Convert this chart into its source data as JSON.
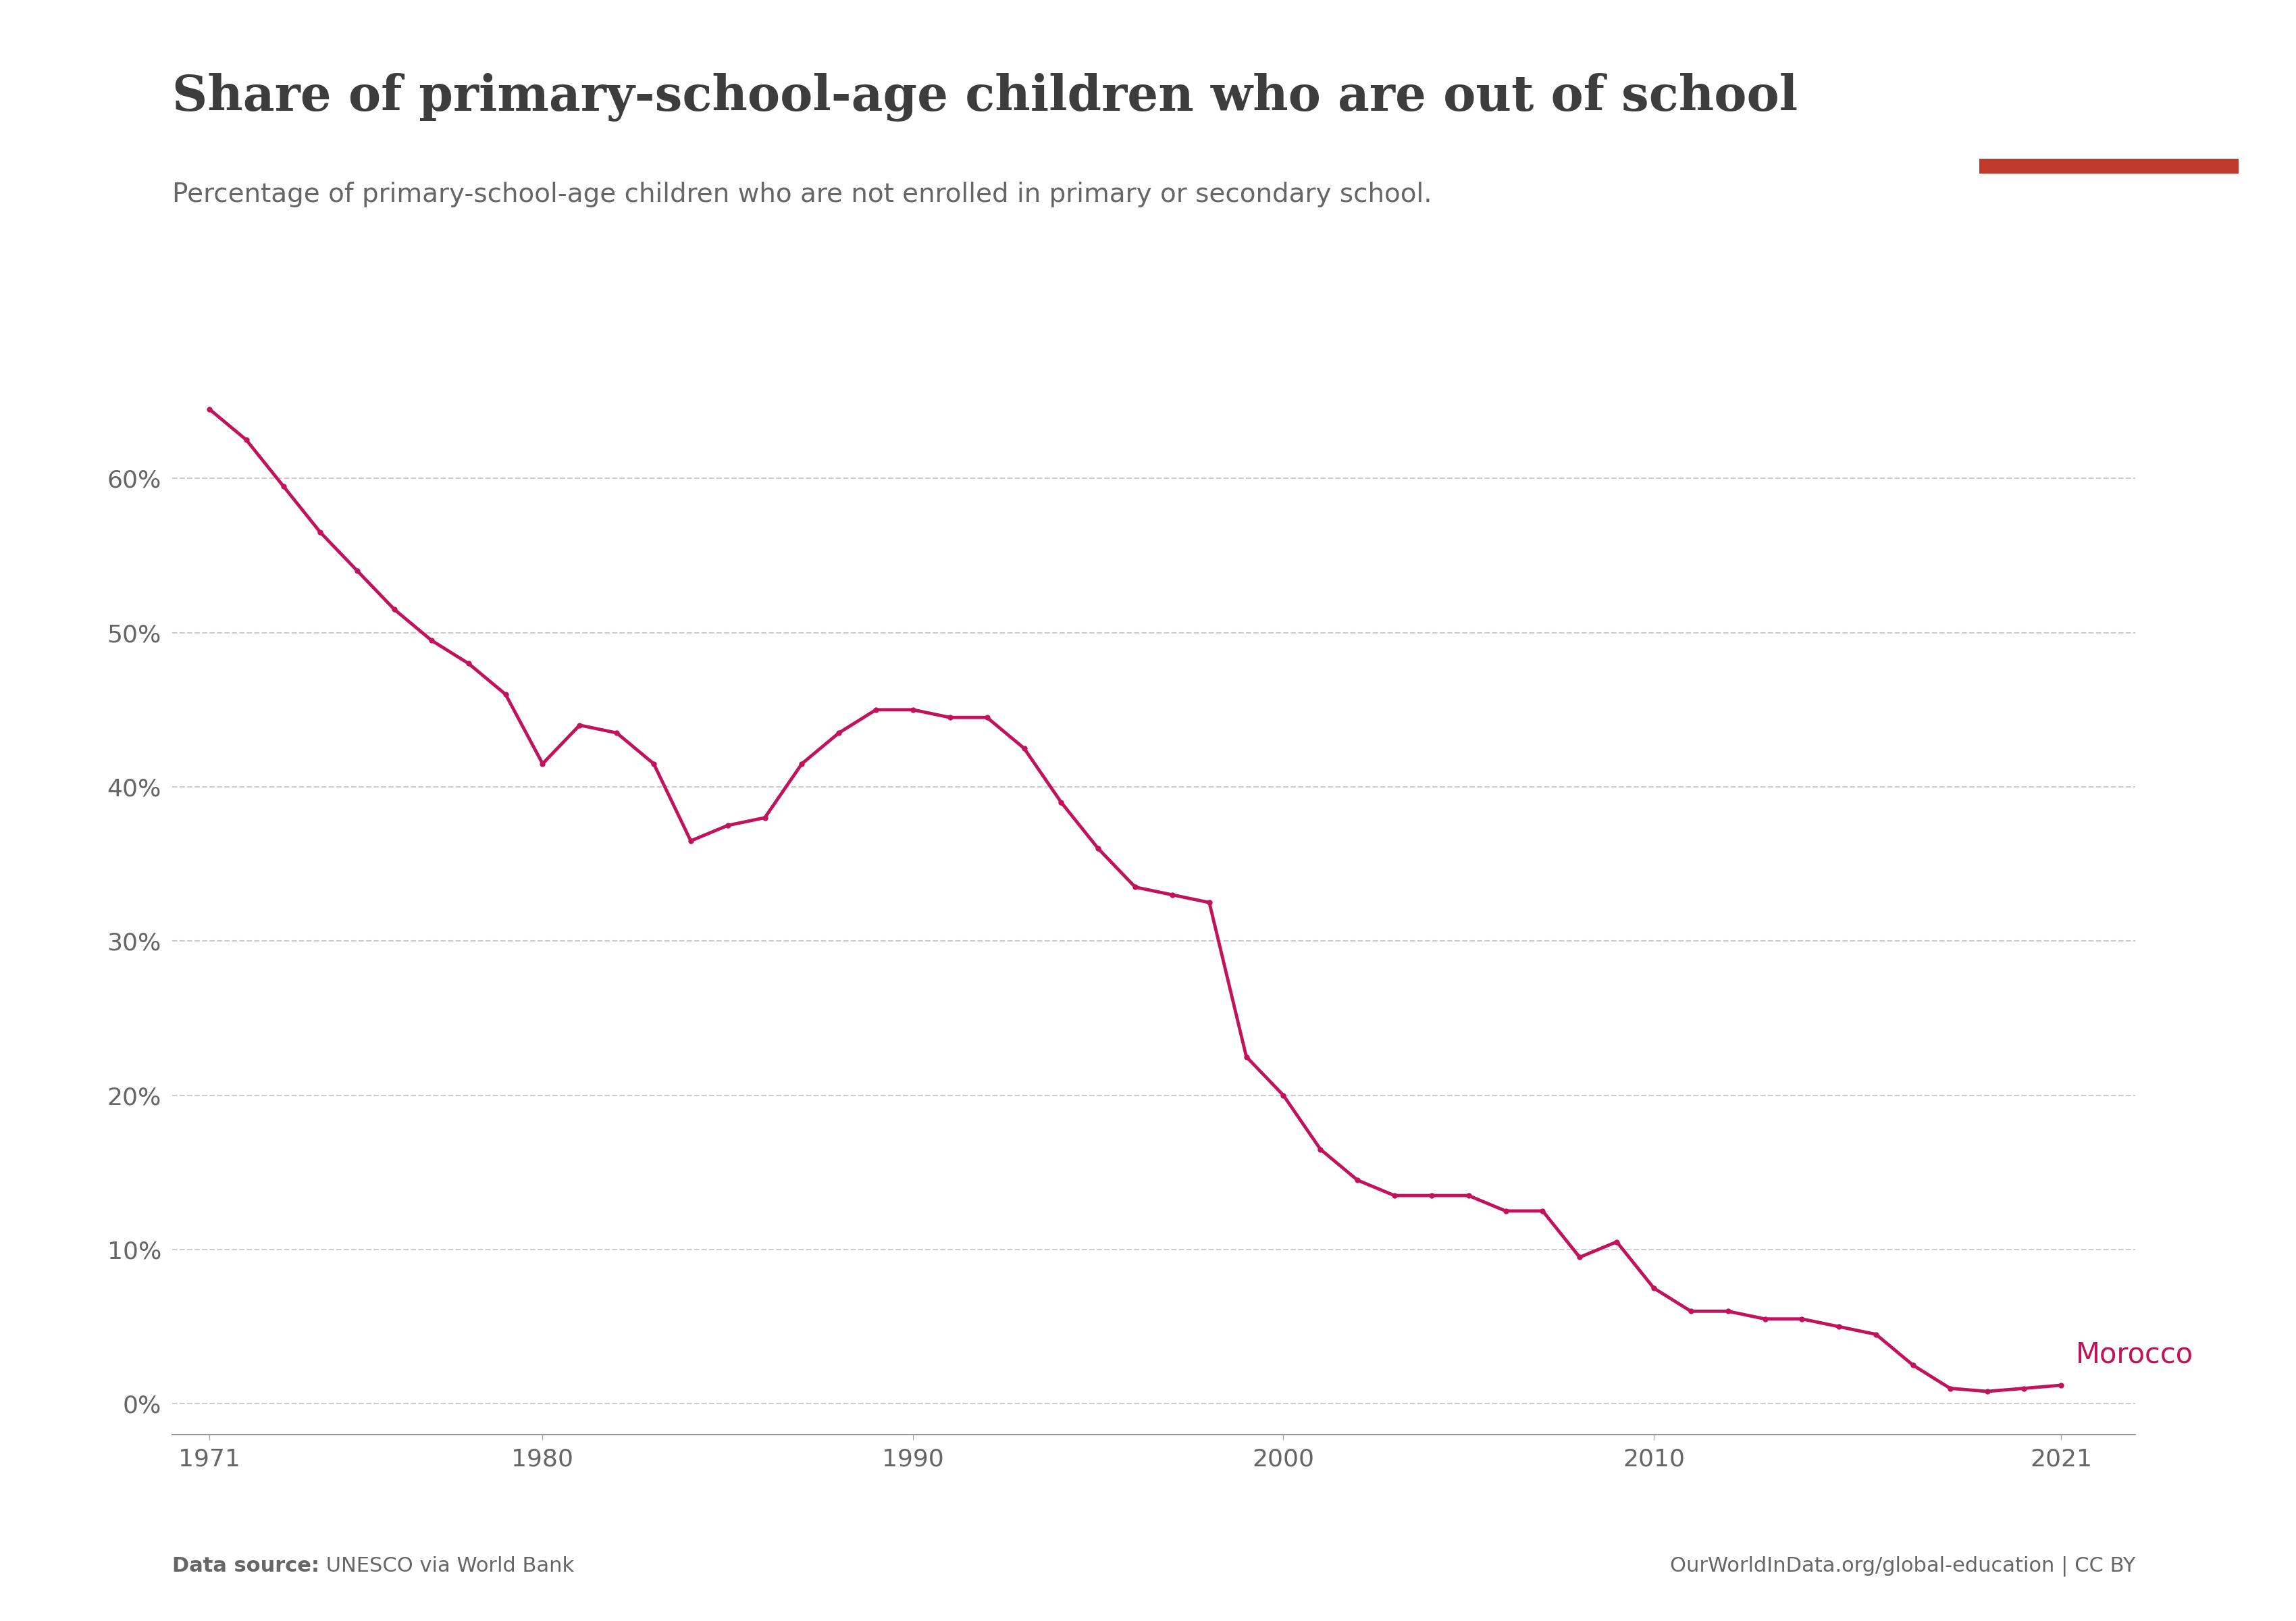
{
  "title": "Share of primary-school-age children who are out of school",
  "subtitle": "Percentage of primary-school-age children who are not enrolled in primary or secondary school.",
  "data_source_bold": "Data source:",
  "data_source_normal": " UNESCO via World Bank",
  "footer_right": "OurWorldInData.org/global-education | CC BY",
  "line_color": "#C0135A",
  "line_label": "Morocco",
  "background_color": "#ffffff",
  "years": [
    1971,
    1972,
    1973,
    1974,
    1975,
    1976,
    1977,
    1978,
    1979,
    1980,
    1981,
    1982,
    1983,
    1984,
    1985,
    1986,
    1987,
    1988,
    1989,
    1990,
    1991,
    1992,
    1993,
    1994,
    1995,
    1996,
    1997,
    1998,
    1999,
    2000,
    2001,
    2002,
    2003,
    2004,
    2005,
    2006,
    2007,
    2008,
    2009,
    2010,
    2011,
    2012,
    2013,
    2014,
    2015,
    2016,
    2017,
    2018,
    2019,
    2020,
    2021
  ],
  "values": [
    64.5,
    62.5,
    59.5,
    56.5,
    54.0,
    51.5,
    49.5,
    48.0,
    46.0,
    41.5,
    44.0,
    43.5,
    41.5,
    36.5,
    37.5,
    38.0,
    41.5,
    43.5,
    45.0,
    45.0,
    44.5,
    44.5,
    42.5,
    39.0,
    36.0,
    33.5,
    33.0,
    32.5,
    22.5,
    20.0,
    16.5,
    14.5,
    13.5,
    13.5,
    13.5,
    12.5,
    12.5,
    9.5,
    10.5,
    7.5,
    6.0,
    6.0,
    5.5,
    5.5,
    5.0,
    4.5,
    2.5,
    1.0,
    0.8,
    1.0,
    1.2
  ],
  "yticks": [
    0,
    10,
    20,
    30,
    40,
    50,
    60
  ],
  "ytick_labels": [
    "0%",
    "10%",
    "20%",
    "30%",
    "40%",
    "50%",
    "60%"
  ],
  "xticks": [
    1971,
    1980,
    1990,
    2000,
    2010,
    2021
  ],
  "ylim": [
    -2,
    70
  ],
  "xlim": [
    1970,
    2023
  ],
  "owid_box_color": "#1a3058",
  "owid_text_color": "#ffffff",
  "owid_red_bar_color": "#c0392b",
  "title_color": "#3d3d3d",
  "subtitle_color": "#666666",
  "axis_color": "#999999",
  "grid_color": "#cccccc",
  "tick_label_color": "#666666",
  "footer_color": "#666666",
  "title_fontsize": 52,
  "subtitle_fontsize": 28,
  "footer_fontsize": 22,
  "tick_fontsize": 26,
  "label_fontsize": 30
}
